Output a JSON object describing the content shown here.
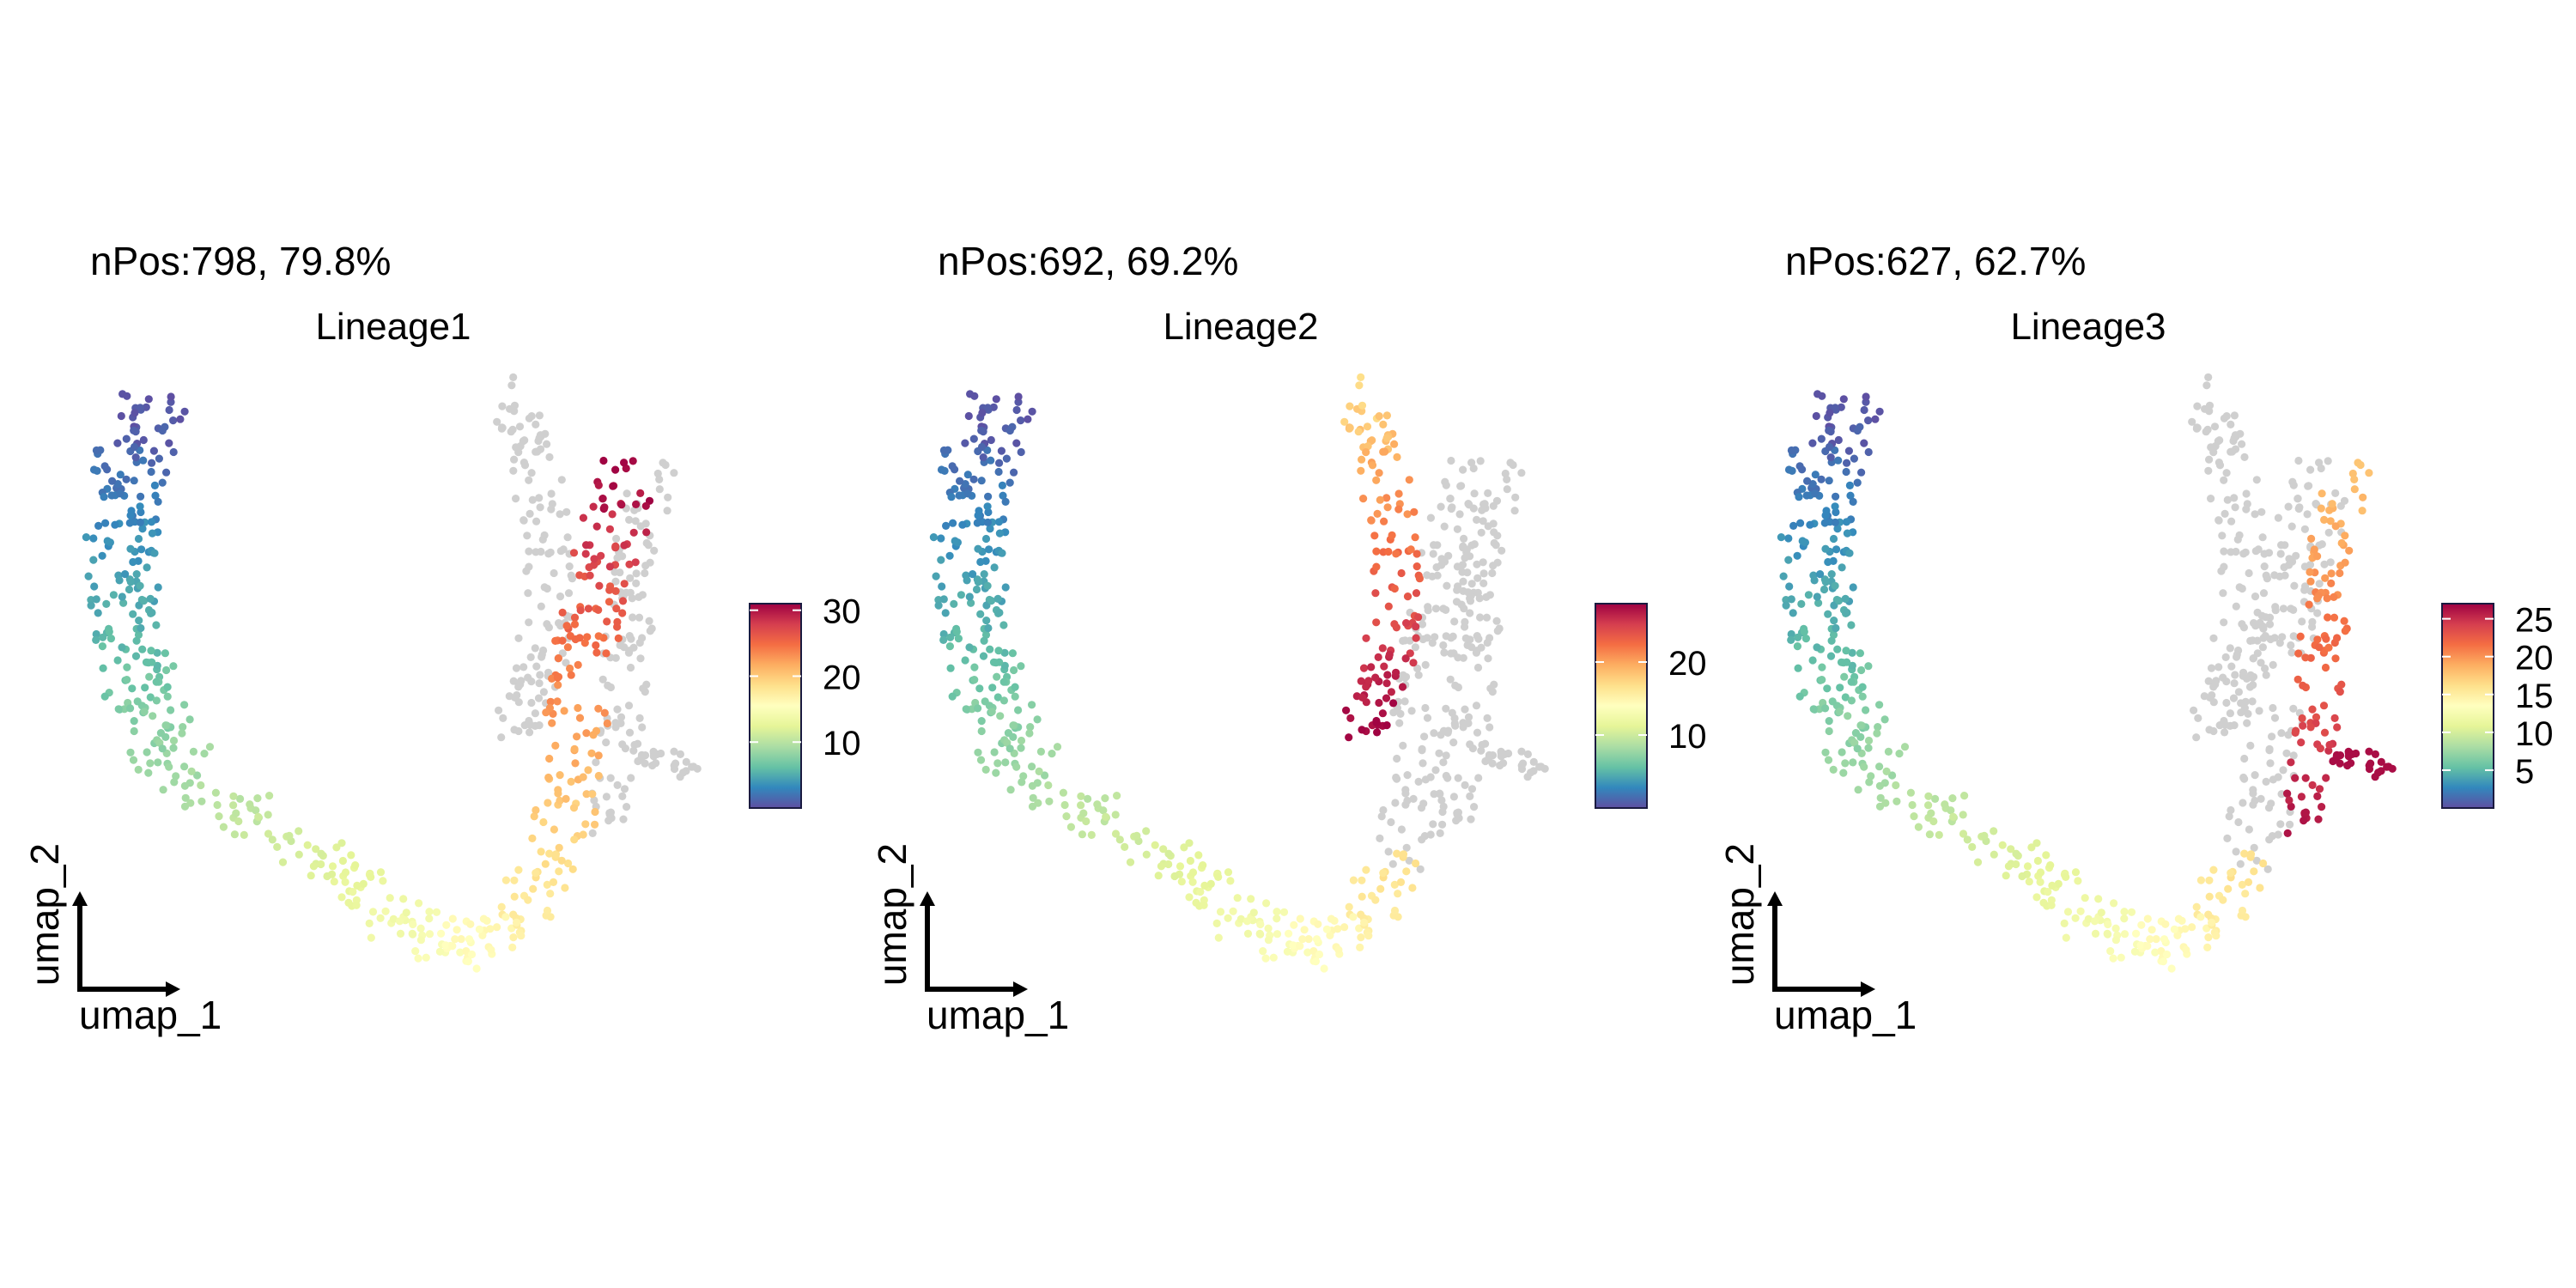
{
  "colors": {
    "na_point": "#cfcfcf",
    "spectral_palette": [
      "#5E4FA2",
      "#3288BD",
      "#66C2A5",
      "#ABDDA4",
      "#E6F598",
      "#FFFFBF",
      "#FEE08B",
      "#FDAE61",
      "#F46D43",
      "#D53E4F",
      "#9E0142"
    ]
  },
  "chart_data": [
    {
      "type": "scatter",
      "panel": "Lineage1",
      "title": "Lineage1",
      "subtitle": "nPos:798, 79.8%",
      "xlabel": "umap_1",
      "ylabel": "umap_2",
      "legend": {
        "position": "right",
        "range": [
          0,
          31
        ],
        "ticks": [
          10,
          20,
          30
        ]
      },
      "n_positive": 798,
      "percent_positive": 79.8,
      "grey_branch": "lineage3-branch"
    },
    {
      "type": "scatter",
      "panel": "Lineage2",
      "title": "Lineage2",
      "subtitle": "nPos:692, 69.2%",
      "xlabel": "umap_1",
      "ylabel": "umap_2",
      "legend": {
        "position": "right",
        "range": [
          0,
          28
        ],
        "ticks": [
          10,
          20
        ]
      },
      "n_positive": 692,
      "percent_positive": 69.2,
      "grey_branch": "lineage1-branch"
    },
    {
      "type": "scatter",
      "panel": "Lineage3",
      "title": "Lineage3",
      "subtitle": "nPos:627, 62.7%",
      "xlabel": "umap_1",
      "ylabel": "umap_2",
      "legend": {
        "position": "right",
        "range": [
          0,
          27
        ],
        "ticks": [
          5,
          10,
          15,
          20,
          25
        ]
      },
      "n_positive": 627,
      "percent_positive": 62.7,
      "grey_branch": "upper-arms"
    }
  ]
}
